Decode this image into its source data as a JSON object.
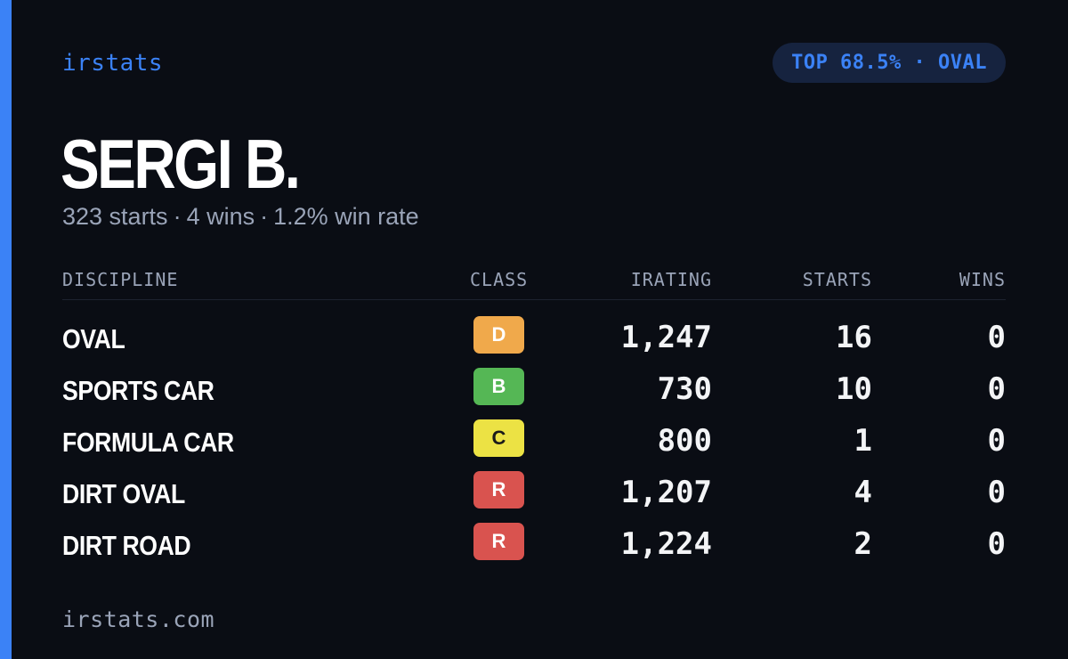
{
  "brand": "irstats",
  "rank_badge": "TOP 68.5% · OVAL",
  "driver_name": "SERGI B.",
  "summary": {
    "starts": "323 starts",
    "wins": "4 wins",
    "win_rate": "1.2% win rate",
    "separator": "·"
  },
  "table": {
    "headers": {
      "discipline": "DISCIPLINE",
      "class": "CLASS",
      "irating": "IRATING",
      "starts": "STARTS",
      "wins": "WINS"
    },
    "rows": [
      {
        "discipline": "OVAL",
        "class": "D",
        "class_color": "#f0a94b",
        "class_text_color": "#ffffff",
        "irating": "1,247",
        "starts": "16",
        "wins": "0"
      },
      {
        "discipline": "SPORTS CAR",
        "class": "B",
        "class_color": "#55b755",
        "class_text_color": "#ffffff",
        "irating": "730",
        "starts": "10",
        "wins": "0"
      },
      {
        "discipline": "FORMULA CAR",
        "class": "C",
        "class_color": "#ece244",
        "class_text_color": "#1a1a1a",
        "irating": "800",
        "starts": "1",
        "wins": "0"
      },
      {
        "discipline": "DIRT OVAL",
        "class": "R",
        "class_color": "#d9534f",
        "class_text_color": "#ffffff",
        "irating": "1,207",
        "starts": "4",
        "wins": "0"
      },
      {
        "discipline": "DIRT ROAD",
        "class": "R",
        "class_color": "#d9534f",
        "class_text_color": "#ffffff",
        "irating": "1,224",
        "starts": "2",
        "wins": "0"
      }
    ]
  },
  "footer": "irstats.com",
  "colors": {
    "accent": "#3b82f6",
    "background": "#0a0d14",
    "muted_text": "#9aa4b8",
    "pill_background": "#16233f"
  }
}
